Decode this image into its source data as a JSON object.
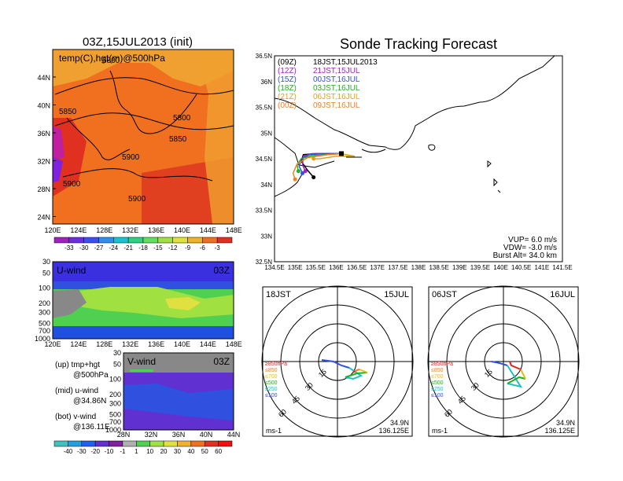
{
  "top_left": {
    "title": "03Z,15JUL2013 (init)",
    "field_label": "temp(C),hgt(m)@500hPa",
    "contour_labels": [
      "5800",
      "5850",
      "5800",
      "5850",
      "5900",
      "5900",
      "5900"
    ],
    "lat_ticks": [
      "44N",
      "40N",
      "36N",
      "32N",
      "28N",
      "24N"
    ],
    "lon_ticks": [
      "120E",
      "124E",
      "128E",
      "132E",
      "136E",
      "140E",
      "144E",
      "148E"
    ],
    "colorbar_labels": [
      "-33",
      "-30",
      "-27",
      "-24",
      "-21",
      "-18",
      "-15",
      "-12",
      "-9",
      "-6",
      "-3"
    ],
    "colorbar_colors": [
      "#a020c0",
      "#6a30e0",
      "#3c50f0",
      "#2c90f0",
      "#1cc0d0",
      "#30d080",
      "#60e060",
      "#a0e040",
      "#e0e040",
      "#f0b030",
      "#f07020",
      "#e03020"
    ]
  },
  "u_wind": {
    "label": "U-wind",
    "time": "03Z",
    "p_ticks": [
      "30",
      "50",
      "100",
      "200",
      "300",
      "500",
      "700",
      "1000"
    ],
    "lon_ticks": [
      "120E",
      "124E",
      "128E",
      "132E",
      "136E",
      "140E",
      "144E",
      "148E"
    ]
  },
  "v_wind": {
    "label": "V-wind",
    "time": "03Z",
    "p_ticks": [
      "30",
      "50",
      "100",
      "200",
      "300",
      "500",
      "700",
      "1000"
    ],
    "lat_ticks": [
      "28N",
      "32N",
      "36N",
      "40N",
      "44N"
    ]
  },
  "legend_text": {
    "up": "(up) tmp+hgt",
    "up2": "@500hPa",
    "mid": "(mid) u-wind",
    "mid2": "@34.86N",
    "bot": "(bot) v-wind",
    "bot2": "@136.11E"
  },
  "wind_colorbar": {
    "labels": [
      "-40",
      "-30",
      "-20",
      "-10",
      "-1",
      "1",
      "10",
      "20",
      "30",
      "40",
      "50",
      "60"
    ],
    "colors": [
      "#40c0c0",
      "#20a0e0",
      "#2060f0",
      "#6030d0",
      "#8020a0",
      "#b0b0b0",
      "#50d050",
      "#a0e040",
      "#e0e040",
      "#f0b030",
      "#f07020",
      "#e03020",
      "#f01010"
    ]
  },
  "main": {
    "title": "Sonde Tracking Forecast",
    "lat_ticks": [
      "36.5N",
      "36N",
      "35.5N",
      "35N",
      "34.5N",
      "34N",
      "33.5N",
      "33N",
      "32.5N"
    ],
    "lon_ticks": [
      "134.5E",
      "135E",
      "135.5E",
      "136E",
      "136.5E",
      "137E",
      "137.5E",
      "138E",
      "138.5E",
      "139E",
      "139.5E",
      "140E",
      "140.5E",
      "141E",
      "141.5E"
    ],
    "runs": [
      {
        "tag": "(09Z)",
        "label": "18JST,15JUL2013",
        "color": "#000000"
      },
      {
        "tag": "(12Z)",
        "label": "21JST,15JUL",
        "color": "#a020c0"
      },
      {
        "tag": "(15Z)",
        "label": "00JST,16JUL",
        "color": "#3050e0"
      },
      {
        "tag": "(18Z)",
        "label": "03JST,16JUL",
        "color": "#20b020"
      },
      {
        "tag": "(21Z)",
        "label": "06JST,16JUL",
        "color": "#e0a020"
      },
      {
        "tag": "(00Z)",
        "label": "09JST,16JUL",
        "color": "#f08020"
      }
    ],
    "vup": "VUP=  6.0 m/s",
    "vdw": "VDW= -3.0 m/s",
    "burst": "Burst Alt= 34.0 km"
  },
  "hodo_left": {
    "time": "18JST",
    "date": "15JUL",
    "rings": [
      "15",
      "30",
      "45",
      "60"
    ],
    "levels": [
      "≥850hPa",
      "≤850",
      "≤700",
      "≤500",
      "≤250",
      "≤100"
    ],
    "level_colors": [
      "#e02020",
      "#f08020",
      "#e0c020",
      "#20b020",
      "#20c0c0",
      "#3050e0"
    ],
    "unit": "ms-1",
    "lat": "34.9N",
    "lon": "136.125E"
  },
  "hodo_right": {
    "time": "06JST",
    "date": "16JUL",
    "rings": [
      "15",
      "30",
      "45",
      "60"
    ],
    "levels": [
      "≥850hPa",
      "≤850",
      "≤700",
      "≤500",
      "≤250",
      "≤100"
    ],
    "level_colors": [
      "#e02020",
      "#f08020",
      "#e0c020",
      "#20b020",
      "#20c0c0",
      "#3050e0"
    ],
    "unit": "ms-1",
    "lat": "34.9N",
    "lon": "136.125E"
  },
  "chart_data": {
    "type": "line",
    "title": "Sonde Tracking Forecast",
    "xlabel": "",
    "ylabel": "",
    "xlim": [
      134.5,
      141.5
    ],
    "ylim": [
      32.5,
      36.5
    ],
    "series": [
      {
        "name": "(09Z) 18JST,15JUL2013",
        "x": [
          136.125,
          135.9,
          135.5,
          135.2,
          135.15,
          135.3,
          135.45
        ],
        "y": [
          34.6,
          34.6,
          34.6,
          34.58,
          34.45,
          34.28,
          34.14
        ]
      },
      {
        "name": "(12Z) 21JST,15JUL",
        "x": [
          136.125,
          135.8,
          135.4,
          135.2,
          135.18,
          135.25
        ],
        "y": [
          34.6,
          34.6,
          34.6,
          34.55,
          34.38,
          34.26
        ]
      },
      {
        "name": "(15Z) 00JST,16JUL",
        "x": [
          136.125,
          135.7,
          135.35,
          135.15,
          135.1,
          135.18
        ],
        "y": [
          34.6,
          34.6,
          34.58,
          34.5,
          34.35,
          34.22
        ]
      },
      {
        "name": "(18Z) 03JST,16JUL",
        "x": [
          136.125,
          135.8,
          135.4,
          135.15,
          135.05,
          135.08
        ],
        "y": [
          34.6,
          34.58,
          34.56,
          34.5,
          34.38,
          34.26
        ]
      },
      {
        "name": "(21Z) 06JST,16JUL",
        "x": [
          136.125,
          136.3,
          136.45,
          136.0,
          135.6,
          135.45
        ],
        "y": [
          34.6,
          34.57,
          34.55,
          34.55,
          34.5,
          34.5
        ]
      },
      {
        "name": "(00Z) 09JST,16JUL",
        "x": [
          136.125,
          135.8,
          135.3,
          135.05,
          134.95,
          135.0
        ],
        "y": [
          34.6,
          34.58,
          34.52,
          34.4,
          34.22,
          34.1
        ]
      }
    ]
  }
}
